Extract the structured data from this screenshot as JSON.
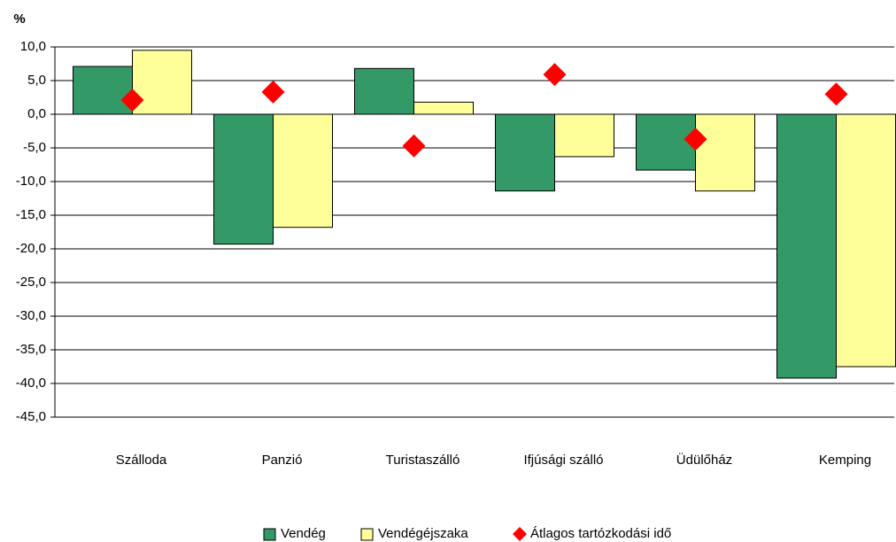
{
  "chart_data": {
    "type": "bar",
    "y_label": "%",
    "categories": [
      "Szálloda",
      "Panzió",
      "Turistaszálló",
      "Ifjúsági szálló",
      "Üdülőház",
      "Kemping"
    ],
    "series": [
      {
        "name": "Vendég",
        "color": "#339966",
        "values": [
          7.1,
          -19.3,
          6.8,
          -11.4,
          -8.3,
          -39.2
        ]
      },
      {
        "name": "Vendégéjszaka",
        "color": "#ffff99",
        "values": [
          9.5,
          -16.8,
          1.8,
          -6.3,
          -11.4,
          -37.5
        ]
      },
      {
        "name": "Átlagos tartózkodási idő",
        "color": "#ff0000",
        "type": "scatter",
        "marker": "diamond",
        "values": [
          2.1,
          3.3,
          -4.7,
          5.9,
          -3.7,
          3.0
        ]
      }
    ],
    "ylim": [
      -45,
      10
    ],
    "yticks": [
      {
        "value": 10,
        "label": "10,0"
      },
      {
        "value": 5,
        "label": "5,0"
      },
      {
        "value": 0,
        "label": "0,0"
      },
      {
        "value": -5,
        "label": "-5,0"
      },
      {
        "value": -10,
        "label": "-10,0"
      },
      {
        "value": -15,
        "label": "-15,0"
      },
      {
        "value": -20,
        "label": "-20,0"
      },
      {
        "value": -25,
        "label": "-25,0"
      },
      {
        "value": -30,
        "label": "-30,0"
      },
      {
        "value": -35,
        "label": "-35,0"
      },
      {
        "value": -40,
        "label": "-40,0"
      },
      {
        "value": -45,
        "label": "-45,0"
      }
    ],
    "grid": true,
    "legend": "bottom"
  }
}
